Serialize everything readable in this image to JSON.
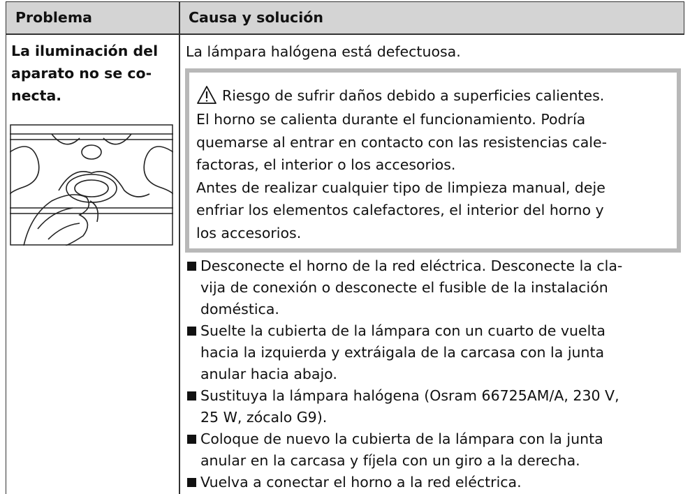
{
  "table": {
    "header": [
      "Problema",
      "Causa y solución"
    ],
    "problem_lines": [
      "La iluminación del",
      "aparato no se co-",
      "necta."
    ],
    "cause": "La lámpara halógena está defectuosa.",
    "warning": {
      "title": "Riesgo de sufrir daños debido a superficies calientes.",
      "lines": [
        "El horno se calienta durante el funcionamiento. Podría",
        "quemarse al entrar en contacto con las resistencias cale-",
        "factoras, el interior o los accesorios.",
        "Antes de realizar cualquier tipo de limpieza manual, deje",
        "enfriar los elementos calefactores, el interior del horno y",
        "los accesorios."
      ]
    },
    "steps": [
      [
        "Desconecte el horno de la red eléctrica. Desconecte la cla-",
        "vija de conexión o desconecte el fusible de la instalación",
        "doméstica."
      ],
      [
        "Suelte la cubierta de la lámpara con un cuarto de vuelta",
        "hacia la izquierda y extráigala de la carcasa con la junta",
        "anular hacia abajo."
      ],
      [
        "Sustituya la lámpara halógena (Osram 66725AM/A, 230 V,",
        "25 W, zócalo G9)."
      ],
      [
        "Coloque de nuevo la cubierta de la lámpara con la junta",
        "anular en la carcasa y fíjela con un giro a la derecha."
      ],
      [
        "Vuelva a conectar el horno a la red eléctrica."
      ]
    ]
  }
}
